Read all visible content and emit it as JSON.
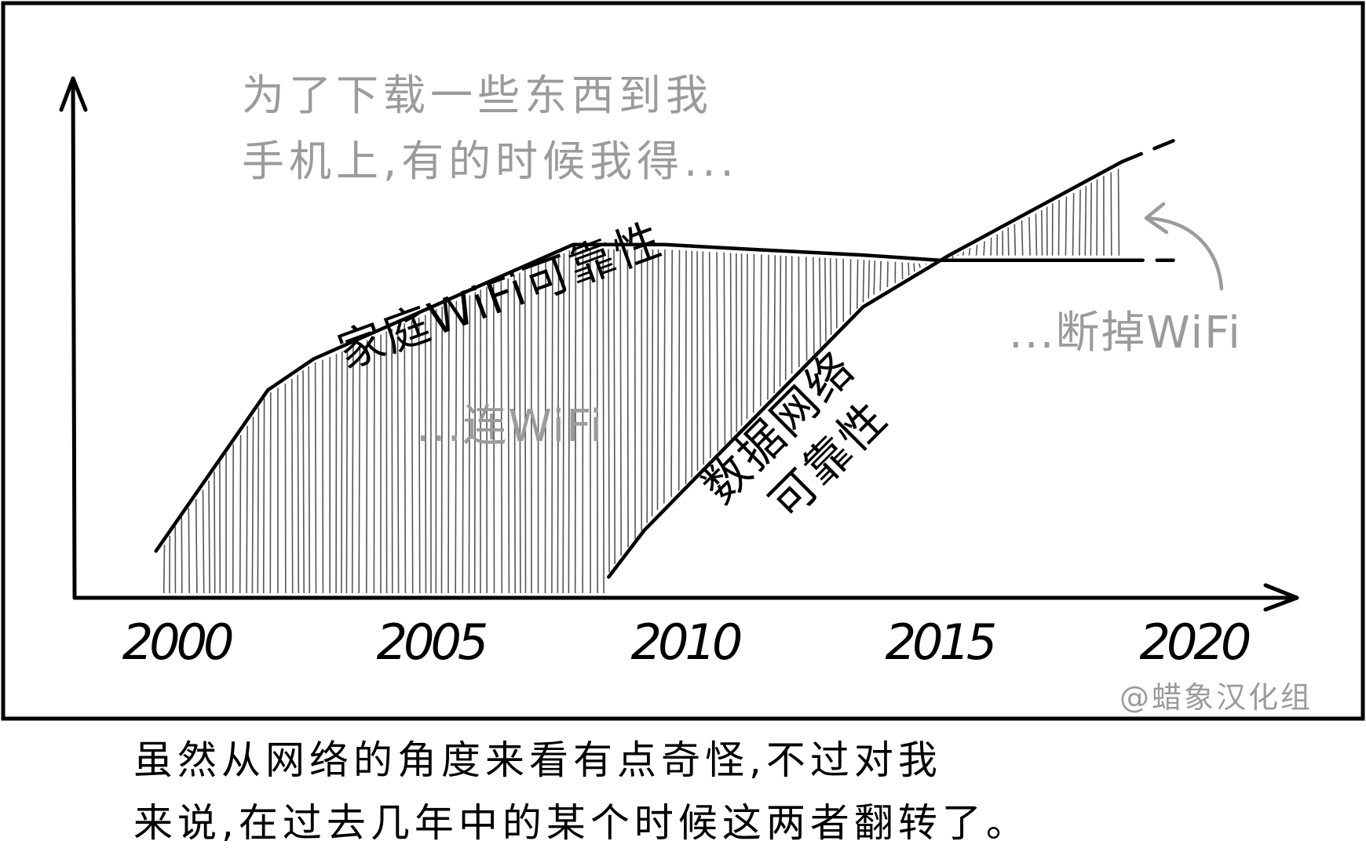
{
  "chart_data": {
    "type": "line",
    "title": "",
    "xlabel": "",
    "ylabel": "",
    "x_ticks": [
      "2000",
      "2005",
      "2010",
      "2015",
      "2020"
    ],
    "xlim": [
      1998,
      2022
    ],
    "ylim": [
      0,
      10
    ],
    "series": [
      {
        "name": "家庭WiFi可靠性",
        "points": [
          [
            1999.6,
            0.9
          ],
          [
            2001.8,
            4.0
          ],
          [
            2002.7,
            4.6
          ],
          [
            2007.8,
            6.8
          ],
          [
            2009.6,
            6.8
          ],
          [
            2011.5,
            6.7
          ],
          [
            2013.5,
            6.6
          ],
          [
            2015,
            6.5
          ],
          [
            2018.6,
            6.5
          ]
        ],
        "projection": [
          [
            2018.6,
            6.5
          ],
          [
            2019.6,
            6.5
          ]
        ]
      },
      {
        "name": "数据网络可靠性",
        "points": [
          [
            2008.5,
            0.4
          ],
          [
            2009.2,
            1.3
          ],
          [
            2013.5,
            5.6
          ],
          [
            2015.2,
            6.6
          ],
          [
            2018.6,
            8.4
          ]
        ],
        "projection": [
          [
            2018.6,
            8.4
          ],
          [
            2019.6,
            8.8
          ]
        ]
      }
    ],
    "annotations": {
      "intro": [
        "为了下载一些东西到我",
        "手机上,有的时候我得..."
      ],
      "wifi_region": "...连WiFi",
      "data_region": "...断掉WiFi"
    }
  },
  "credit": "@蜡象汉化组",
  "caption": [
    "虽然从网络的角度来看有点奇怪,不过对我",
    "来说,在过去几年中的某个时候这两者翻转了。"
  ],
  "labels": {
    "wifi_line": "家庭WiFi可靠性",
    "data_line_1": "数据网络",
    "data_line_2": "可靠性"
  }
}
